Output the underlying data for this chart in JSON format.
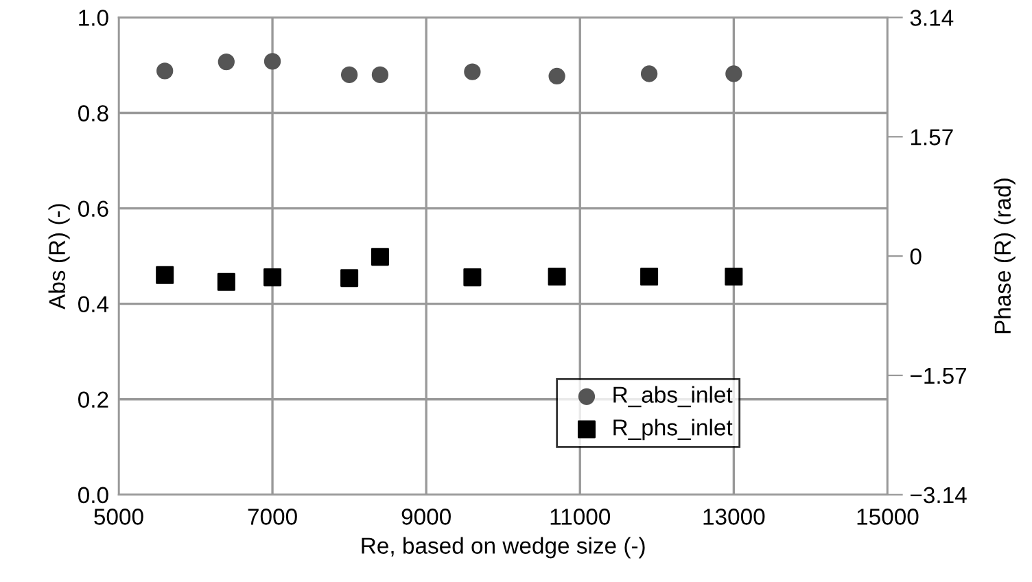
{
  "chart_data": {
    "type": "scatter",
    "xlabel": "Re, based on wedge size (-)",
    "ylabel": "Abs (R) (-)",
    "y2label": "Phase (R) (rad)",
    "x": [
      5600,
      6400,
      7000,
      8000,
      8400,
      9600,
      10700,
      11900,
      13000
    ],
    "series": [
      {
        "name": "R_abs_inlet",
        "color": "#555555",
        "marker": "circle",
        "values": [
          0.888,
          0.907,
          0.908,
          0.88,
          0.88,
          0.886,
          0.877,
          0.882,
          0.882
        ]
      },
      {
        "name": "R_phs_inlet",
        "color": "#000000",
        "marker": "square",
        "axis": "y2",
        "values": [
          -0.25,
          -0.34,
          -0.28,
          -0.29,
          -0.01,
          -0.28,
          -0.27,
          -0.27,
          -0.27
        ]
      }
    ],
    "xlim": [
      5000,
      15000
    ],
    "xticks": [
      5000,
      7000,
      9000,
      11000,
      13000,
      15000
    ],
    "ylim": [
      0,
      1
    ],
    "yticks": [
      {
        "value": 0,
        "label": "0.0"
      },
      0.2,
      0.4,
      0.6,
      0.8,
      {
        "value": 1,
        "label": "1.0"
      }
    ],
    "y2lim": [
      -3.14,
      3.14
    ],
    "y2ticks": [
      {
        "value": -3.14,
        "label": "−3.14"
      },
      {
        "value": -1.57,
        "label": "−1.57"
      },
      0,
      1.57,
      3.14
    ],
    "grid": true,
    "legend": "bottom right"
  }
}
